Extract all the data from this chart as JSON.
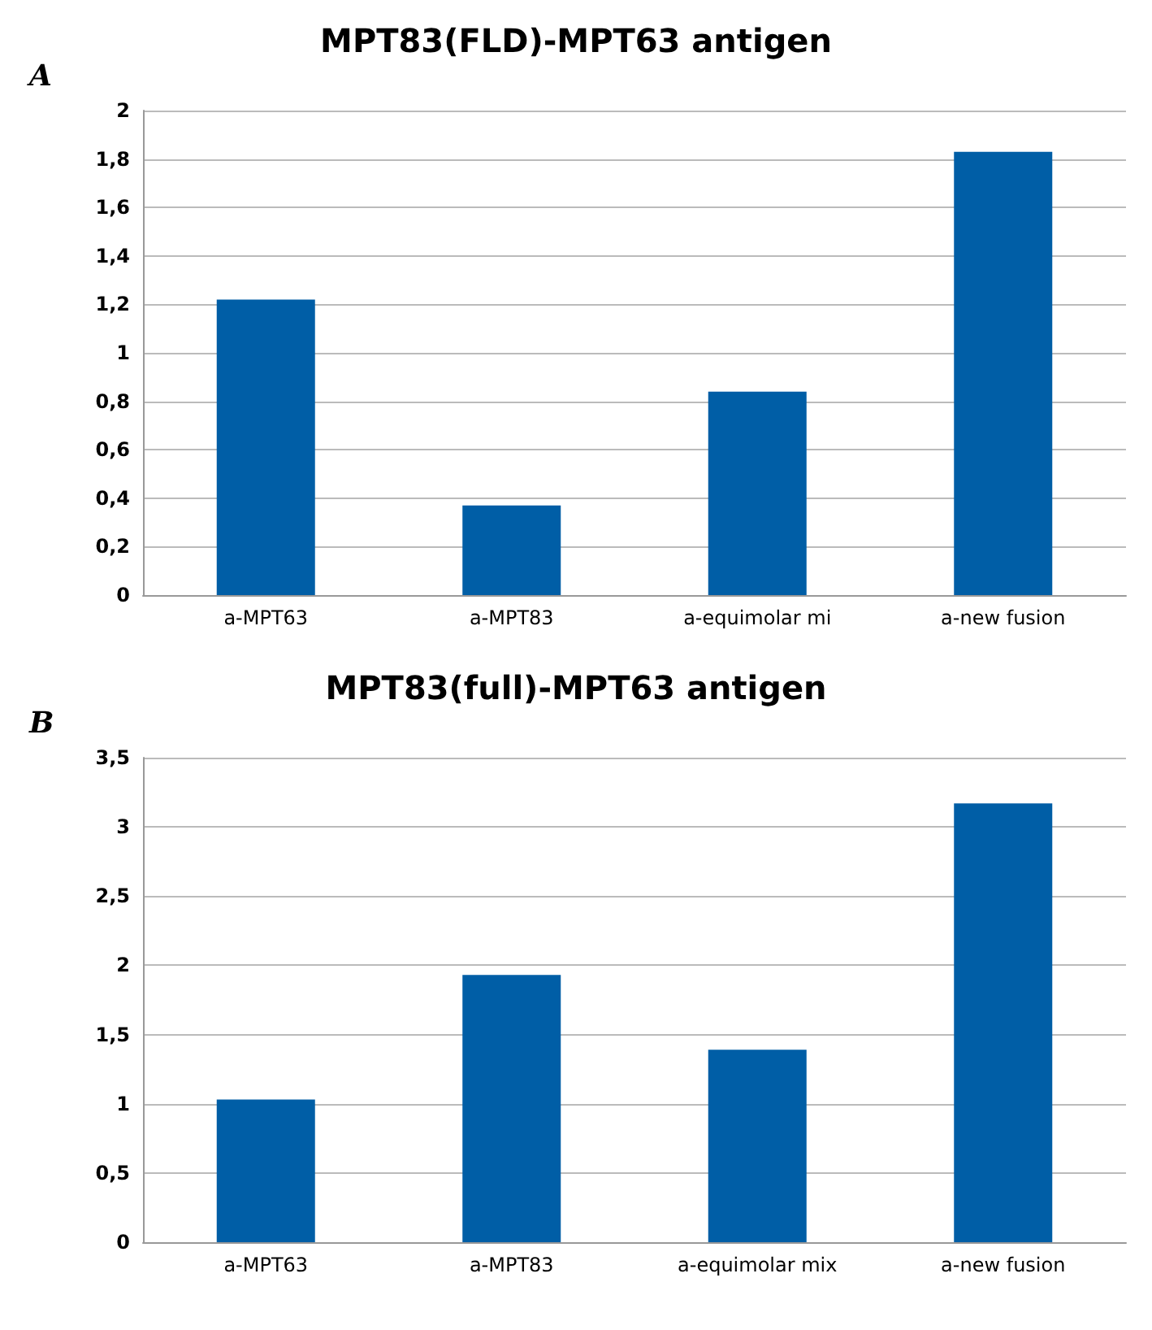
{
  "chart_data": [
    {
      "type": "bar",
      "title": "MPT83(FLD)-MPT63 antigen",
      "annotations": [
        "A"
      ],
      "categories": [
        "a-MPT63",
        "a-MPT83",
        "a-equimolar mi",
        "a-new fusion"
      ],
      "values": [
        1.22,
        0.37,
        0.84,
        1.83
      ],
      "color": "#005ea6",
      "ylim": [
        0,
        2
      ],
      "yticks": [
        0,
        {
          "value": 0.2,
          "label": "0,2"
        },
        {
          "value": 0.4,
          "label": "0,4"
        },
        {
          "value": 0.6,
          "label": "0,6"
        },
        {
          "value": 0.8,
          "label": "0,8"
        },
        1,
        {
          "value": 1.2,
          "label": "1,2"
        },
        {
          "value": 1.4,
          "label": "1,4"
        },
        {
          "value": 1.6,
          "label": "1,6"
        },
        {
          "value": 1.8,
          "label": "1,8"
        },
        2
      ],
      "grid": "y"
    },
    {
      "type": "bar",
      "title": "MPT83(full)-MPT63 antigen",
      "annotations": [
        "B"
      ],
      "categories": [
        "a-MPT63",
        "a-MPT83",
        "a-equimolar mix",
        "a-new fusion"
      ],
      "values": [
        1.03,
        1.93,
        1.39,
        3.17
      ],
      "color": "#005ea6",
      "ylim": [
        0,
        3.5
      ],
      "yticks": [
        0,
        {
          "value": 0.5,
          "label": "0,5"
        },
        1,
        {
          "value": 1.5,
          "label": "1,5"
        },
        2,
        {
          "value": 2.5,
          "label": "2,5"
        },
        3,
        {
          "value": 3.5,
          "label": "3,5"
        }
      ],
      "grid": "y"
    }
  ]
}
